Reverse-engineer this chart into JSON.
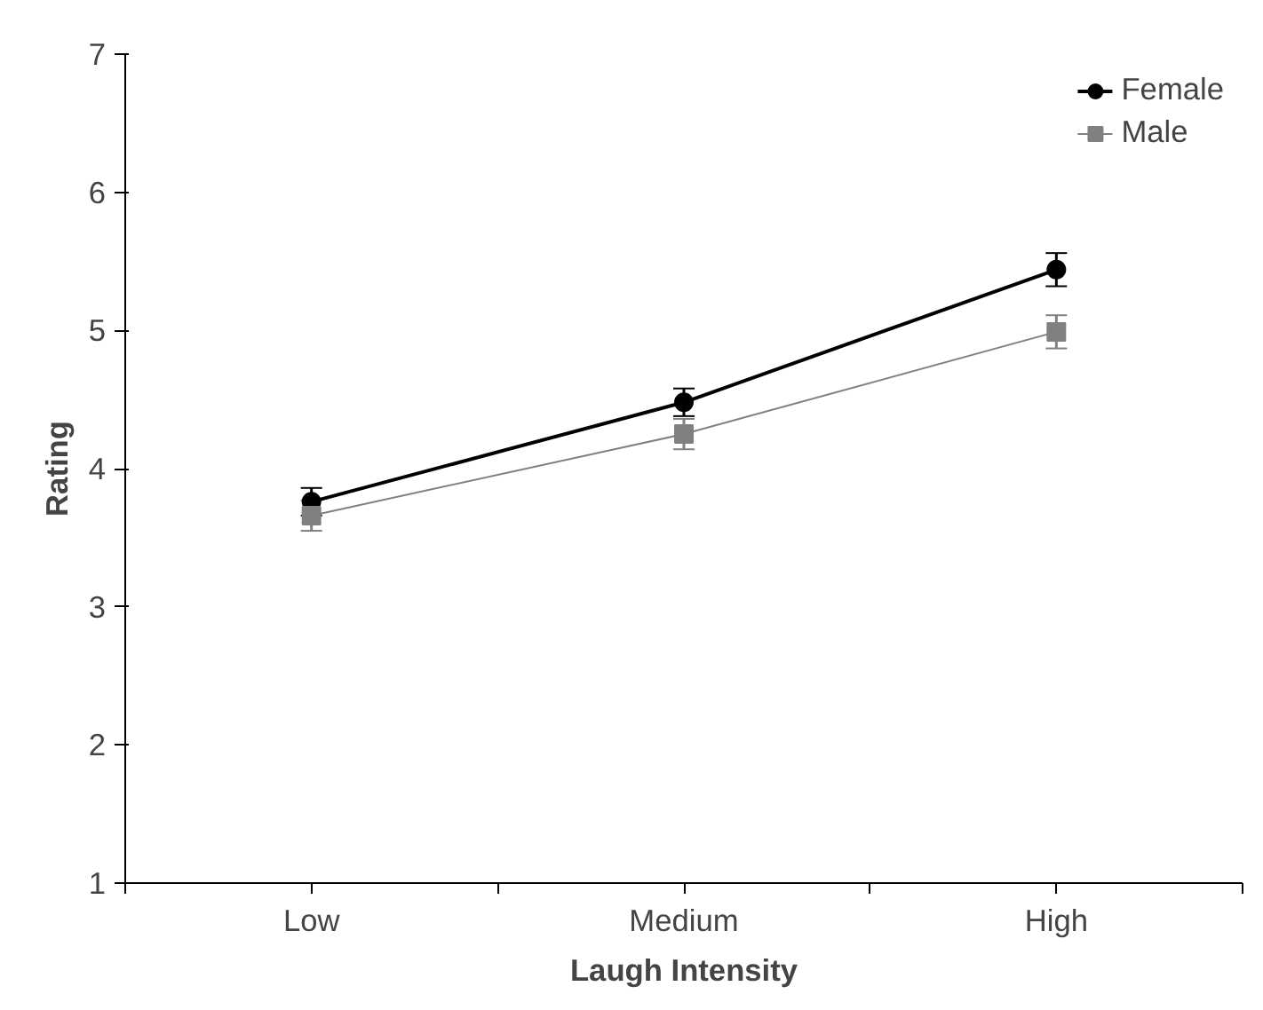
{
  "chart_data": {
    "type": "line",
    "xlabel": "Laugh Intensity",
    "ylabel": "Rating",
    "categories": [
      "Low",
      "Medium",
      "High"
    ],
    "ylim": [
      1,
      7
    ],
    "yticks": [
      1,
      2,
      3,
      4,
      5,
      6,
      7
    ],
    "grid": false,
    "legend": "top right",
    "series": [
      {
        "name": "Female",
        "color": "#000000",
        "marker": "circle",
        "values": [
          3.76,
          4.48,
          5.44
        ],
        "errors": [
          0.1,
          0.1,
          0.12
        ]
      },
      {
        "name": "Male",
        "color": "#808080",
        "marker": "square",
        "values": [
          3.66,
          4.25,
          4.99
        ],
        "errors": [
          0.11,
          0.11,
          0.12
        ]
      }
    ]
  }
}
